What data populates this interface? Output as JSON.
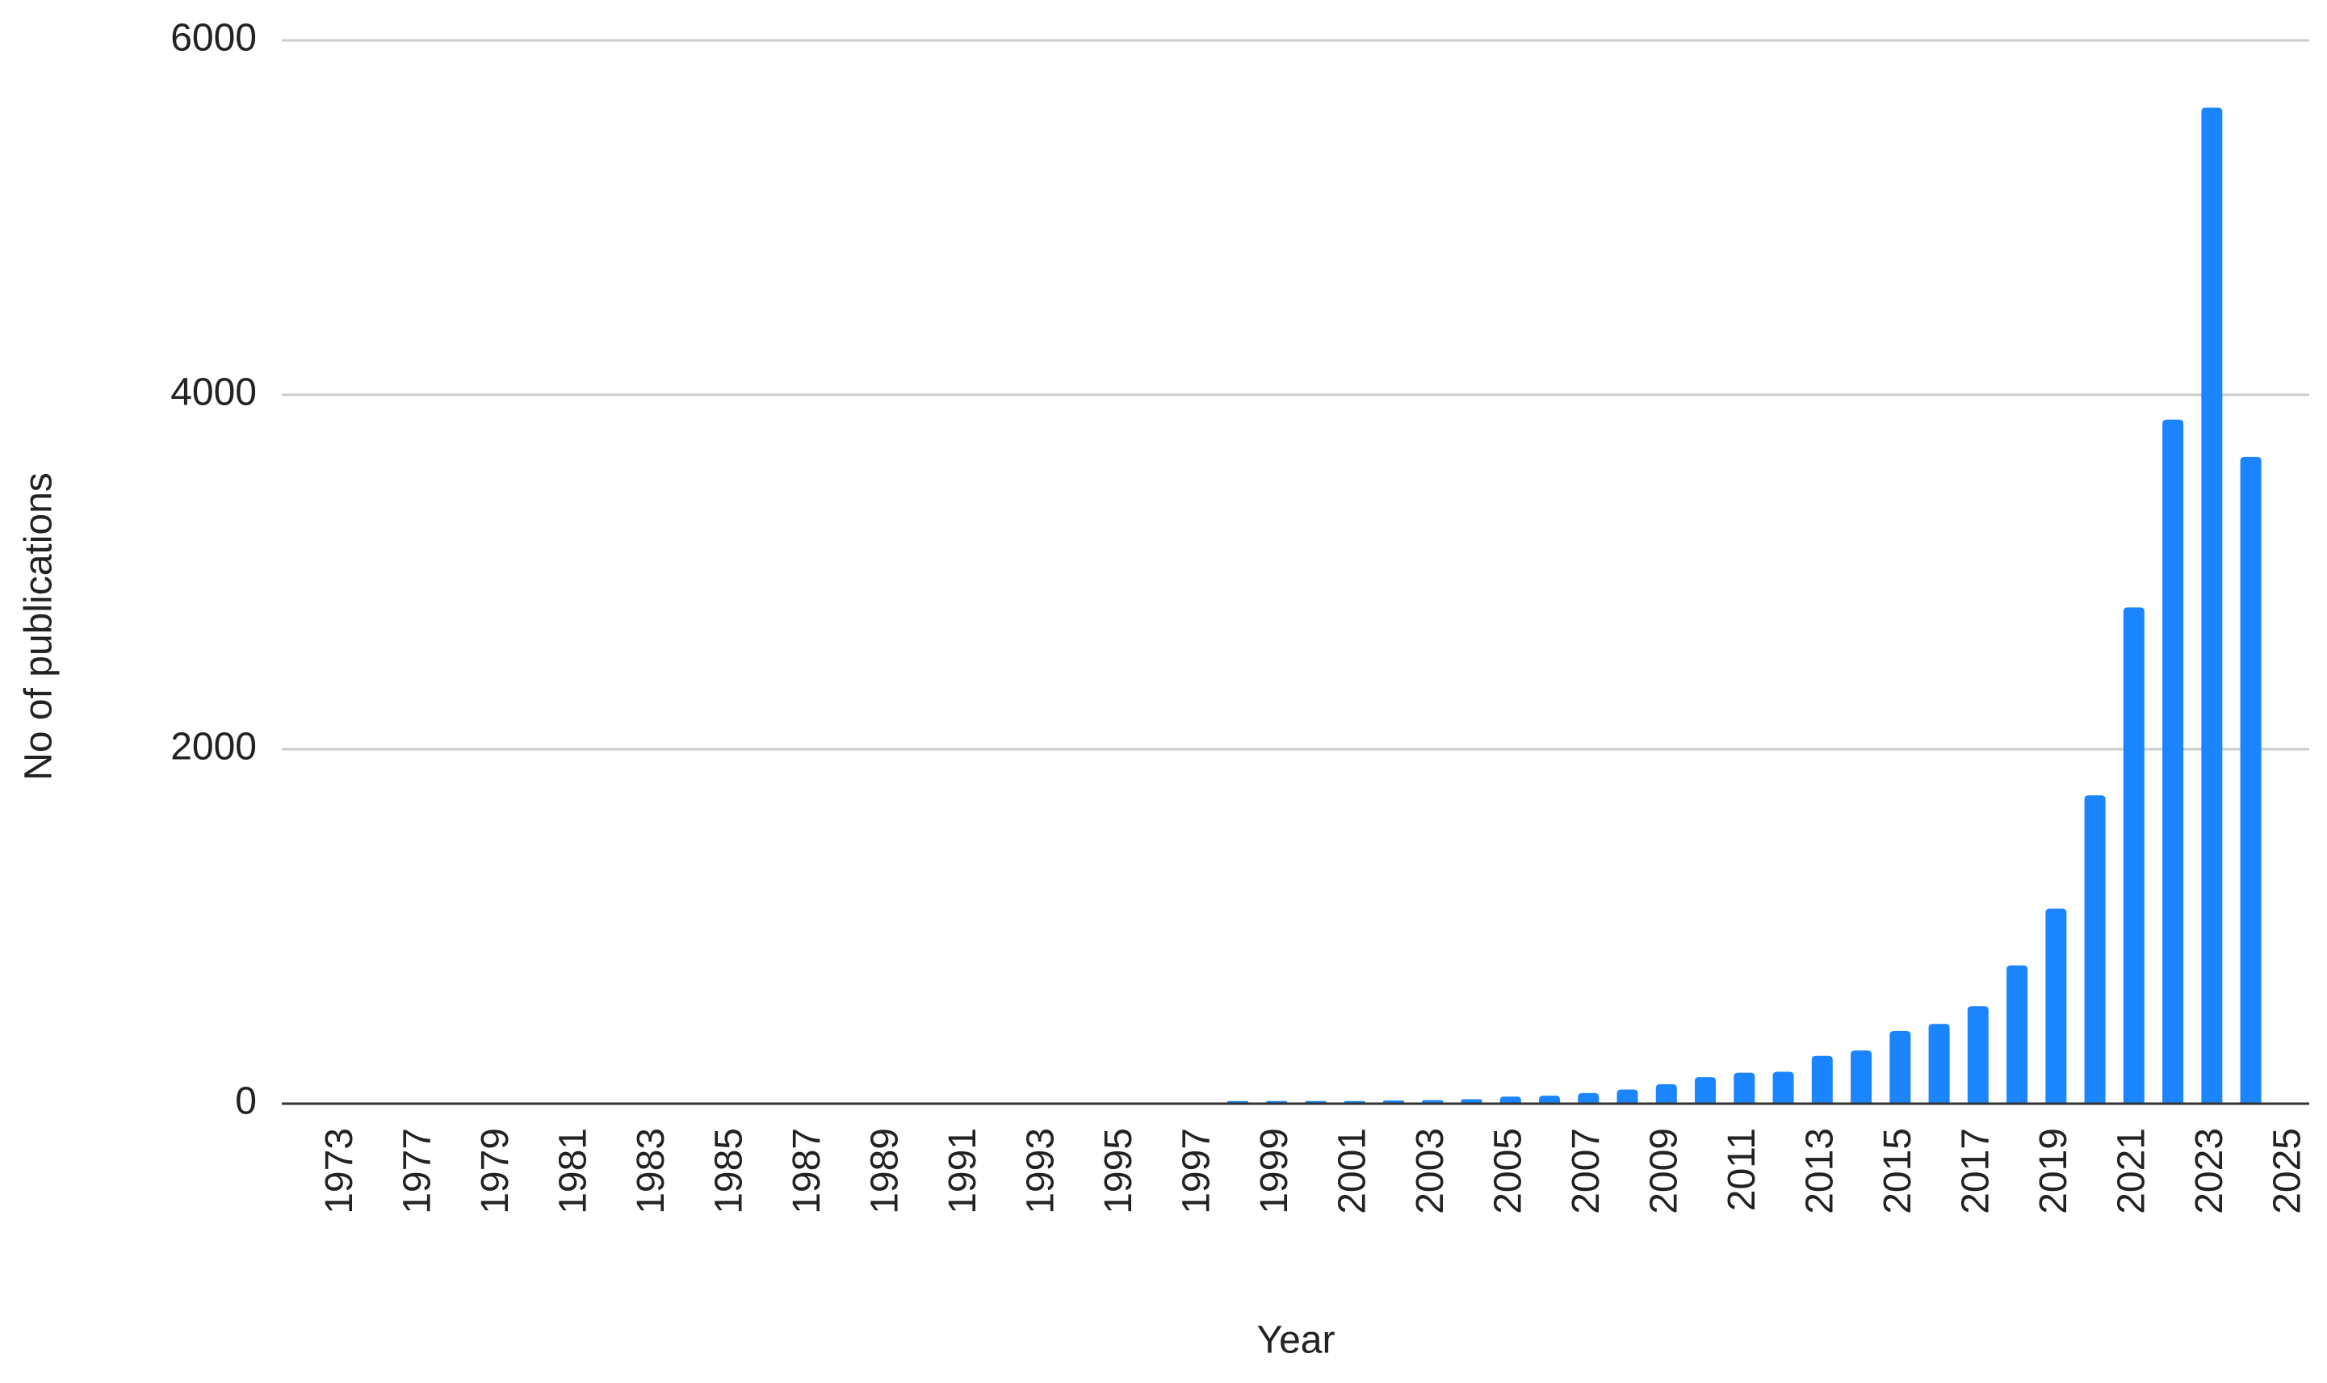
{
  "chart_data": {
    "type": "bar",
    "x_label": "Year",
    "y_label": "No of publications",
    "categories": [
      "1973",
      null,
      "1977",
      null,
      "1979",
      null,
      "1981",
      null,
      "1983",
      null,
      "1985",
      null,
      "1987",
      null,
      "1989",
      null,
      "1991",
      null,
      "1993",
      null,
      "1995",
      null,
      "1997",
      null,
      "1999",
      null,
      "2001",
      null,
      "2003",
      null,
      "2005",
      null,
      "2007",
      null,
      "2009",
      null,
      "2011",
      null,
      "2013",
      null,
      "2015",
      null,
      "2017",
      null,
      "2019",
      null,
      "2021",
      null,
      "2023",
      null,
      "2025"
    ],
    "values": [
      1,
      1,
      1,
      1,
      1,
      1,
      1,
      1,
      1,
      1,
      1,
      1,
      1,
      1,
      1,
      1,
      1,
      1,
      1,
      1,
      1,
      1,
      1,
      15,
      15,
      15,
      15,
      18,
      20,
      25,
      40,
      45,
      60,
      80,
      110,
      150,
      175,
      180,
      270,
      300,
      410,
      450,
      550,
      780,
      1100,
      1740,
      2800,
      3860,
      5620,
      3650,
      0
    ],
    "color": "#1a85ff",
    "ylim": [
      0,
      6000
    ],
    "yticks": [
      0,
      2000,
      4000,
      6000
    ],
    "grid": true
  }
}
